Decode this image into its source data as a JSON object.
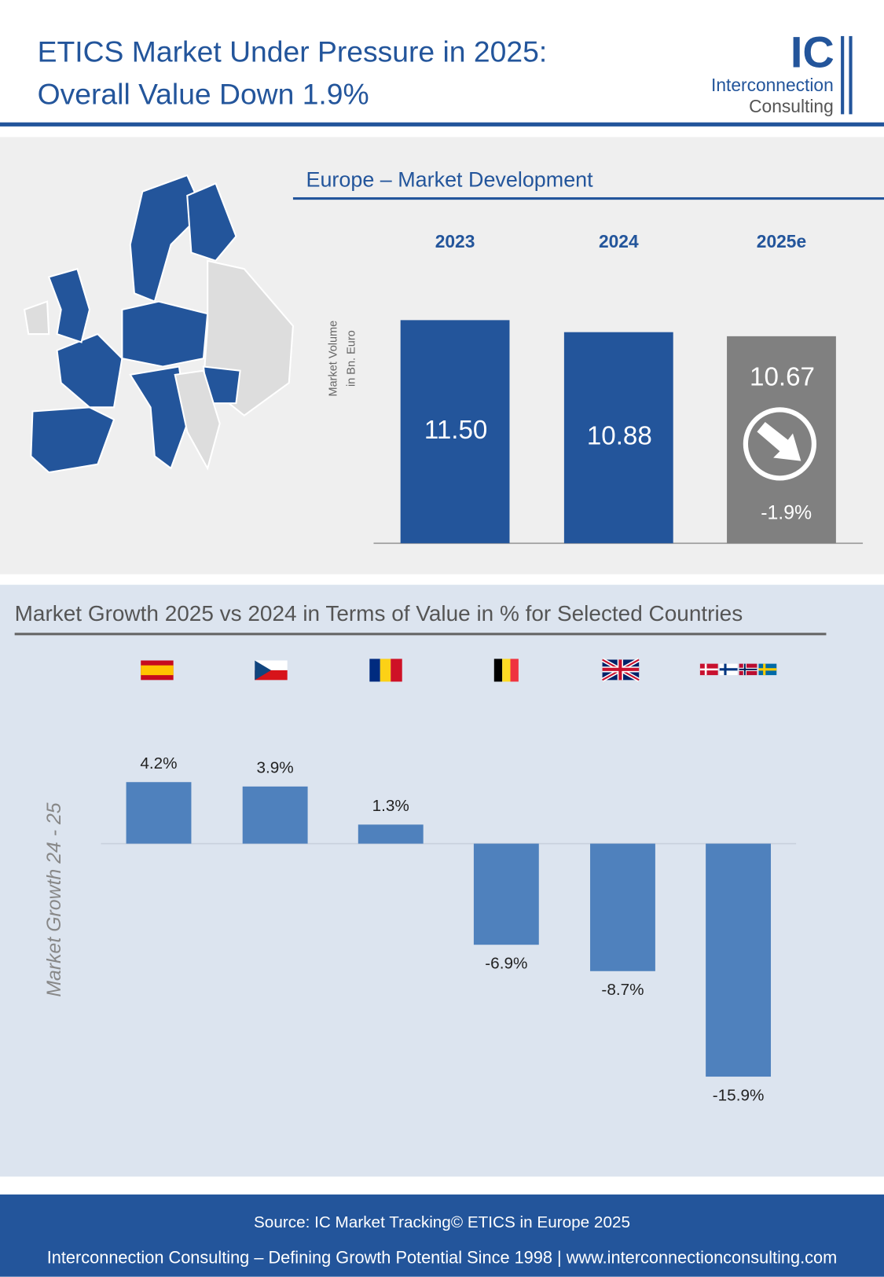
{
  "header": {
    "title": [
      "ETICS Market Under Pressure in 2025:",
      "Overall Value Down 1.9%"
    ],
    "logo": {
      "mark": "IC",
      "line1": "Interconnection",
      "line2": "Consulting"
    }
  },
  "chart_data": [
    {
      "type": "bar",
      "title": "Europe – Market Development",
      "y_label": [
        "Market Volume",
        "in Bn. Euro"
      ],
      "categories": [
        "2023",
        "2024",
        "2025e"
      ],
      "values": [
        11.5,
        10.88,
        10.67
      ],
      "value_labels": [
        "11.50",
        "10.88",
        "10.67"
      ],
      "colors": [
        "#23559b",
        "#23559b",
        "#808080"
      ],
      "ylim": [
        0,
        12
      ],
      "annotation": "-1.9%"
    },
    {
      "type": "bar",
      "title": "Market Growth 2025 vs 2024 in Terms of Value in % for Selected Countries",
      "y_label": "Market Growth 24 - 25",
      "categories": [
        null,
        null,
        null,
        null,
        null,
        null
      ],
      "values": [
        4.2,
        3.9,
        1.3,
        -6.9,
        -8.7,
        -15.9
      ],
      "value_labels": [
        "4.2%",
        "3.9%",
        "1.3%",
        "-6.9%",
        "-8.7%",
        "-15.9%"
      ],
      "color": "#4f81bd",
      "ylim": [
        -20,
        6
      ]
    }
  ],
  "footer": {
    "source": "Source: IC Market Tracking© ETICS in Europe 2025",
    "tagline": "Interconnection Consulting – Defining Growth Potential Since 1998 | www.interconnectionconsulting.com"
  }
}
